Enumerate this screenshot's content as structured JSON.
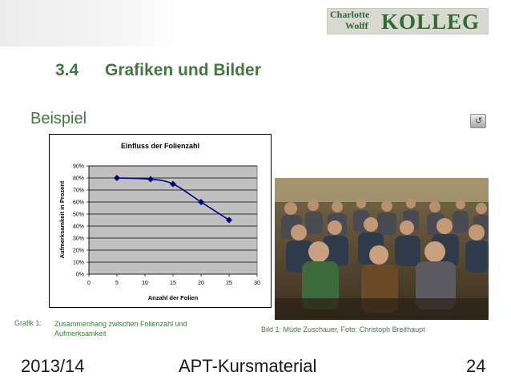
{
  "logo": {
    "line1": "Charlotte",
    "line2": "Wolff",
    "line3": "KOLLEG"
  },
  "section": {
    "number": "3.4",
    "title": "Grafiken und Bilder"
  },
  "subtitle": "Beispiel",
  "nav_icon": "return-icon",
  "colors": {
    "accent": "#3f7a3f",
    "series": "#000080",
    "plot_bg": "#c0c0c0"
  },
  "chart_data": {
    "type": "line",
    "title": "Einfluss der Folienzahl",
    "xlabel": "Anzahl der Folien",
    "ylabel": "Aufmerksamkeit in Prozent",
    "x": [
      5,
      11,
      15,
      20,
      25
    ],
    "series": [
      {
        "values": [
          80,
          79,
          75,
          60,
          45
        ]
      }
    ],
    "xlim": [
      0,
      30
    ],
    "ylim": [
      0,
      90
    ],
    "xticks": [
      0,
      5,
      10,
      15,
      20,
      25,
      30
    ],
    "yticks": [
      "0%",
      "10%",
      "20%",
      "30%",
      "40%",
      "50%",
      "60%",
      "70%",
      "80%",
      "90%"
    ],
    "grid": "horizontal",
    "legend": "none"
  },
  "captions": {
    "chart_label": "Grafik 1:",
    "chart_text": "Zusammenhang zwischen Folienzahl und Aufmerksamkeit",
    "photo": "Bild 1: Müde Zuschauer, Foto: Christoph Breithaupt"
  },
  "footer": {
    "left": "2013/14",
    "center": "APT-Kursmaterial",
    "right": "24"
  }
}
